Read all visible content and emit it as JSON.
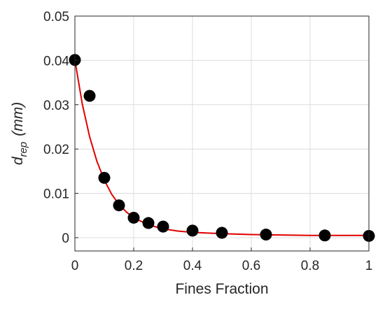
{
  "chart_data": {
    "type": "scatter",
    "xlabel": "Fines Fraction",
    "ylabel_main": "d",
    "ylabel_sub": "rep",
    "ylabel_unit": "(mm)",
    "xlim": [
      0,
      1
    ],
    "ylim": [
      -0.003,
      0.05
    ],
    "x_ticks": [
      0,
      0.2,
      0.4,
      0.6,
      0.8,
      1
    ],
    "x_tick_labels": [
      "0",
      "0.2",
      "0.4",
      "0.6",
      "0.8",
      "1"
    ],
    "y_ticks": [
      0,
      0.01,
      0.02,
      0.03,
      0.04,
      0.05
    ],
    "y_tick_labels": [
      "0",
      "0.01",
      "0.02",
      "0.03",
      "0.04",
      "0.05"
    ],
    "grid": true,
    "series": [
      {
        "kind": "scatter",
        "color": "#000000",
        "x": [
          0,
          0.05,
          0.1,
          0.15,
          0.2,
          0.25,
          0.3,
          0.4,
          0.5,
          0.65,
          0.85,
          1.0
        ],
        "y": [
          0.0401,
          0.032,
          0.0135,
          0.0073,
          0.0045,
          0.0033,
          0.0025,
          0.0016,
          0.0011,
          0.0007,
          0.0005,
          0.0004
        ]
      },
      {
        "kind": "line",
        "color": "#e00000",
        "x": [
          0,
          0.025,
          0.05,
          0.075,
          0.1,
          0.125,
          0.15,
          0.175,
          0.2,
          0.25,
          0.3,
          0.35,
          0.4,
          0.5,
          0.6,
          0.7,
          0.8,
          0.9,
          1.0
        ],
        "y": [
          0.0401,
          0.0302,
          0.0228,
          0.0172,
          0.013,
          0.0098,
          0.0075,
          0.0058,
          0.0045,
          0.0029,
          0.002,
          0.0015,
          0.0012,
          0.0009,
          0.0007,
          0.0006,
          0.0005,
          0.0005,
          0.0005
        ]
      }
    ]
  }
}
